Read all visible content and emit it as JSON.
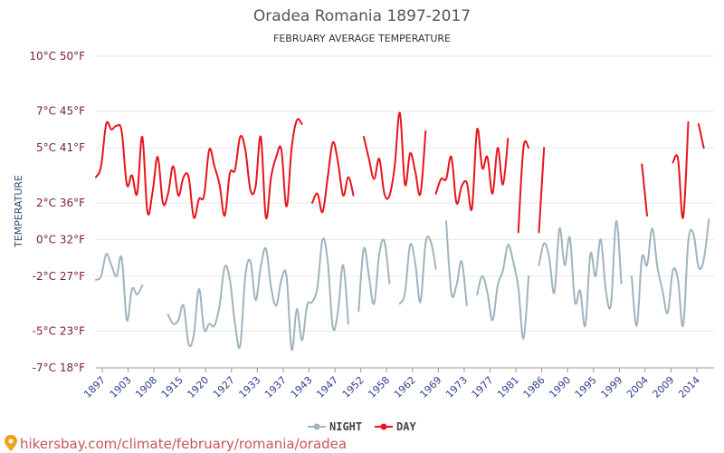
{
  "chart_data": {
    "type": "line",
    "title": "Oradea Romania 1897-2017",
    "subtitle": "FEBRUARY AVERAGE TEMPERATURE",
    "ylabel": "TEMPERATURE",
    "xlabel": "",
    "ylim": [
      -7,
      10
    ],
    "xlim": [
      1897,
      2017
    ],
    "y_ticks": [
      {
        "value": 10,
        "label": "10°C 50°F"
      },
      {
        "value": 7,
        "label": "7°C 45°F"
      },
      {
        "value": 5,
        "label": "5°C 41°F"
      },
      {
        "value": 2,
        "label": "2°C 36°F"
      },
      {
        "value": 0,
        "label": "0°C 32°F"
      },
      {
        "value": -2,
        "label": "-2°C 27°F"
      },
      {
        "value": -5,
        "label": "-5°C 23°F"
      },
      {
        "value": -7,
        "label": "-7°C 18°F"
      }
    ],
    "x_ticks": [
      "1897",
      "1903",
      "1908",
      "1915",
      "1920",
      "1927",
      "1933",
      "1937",
      "1943",
      "1947",
      "1952",
      "1958",
      "1962",
      "1969",
      "1973",
      "1977",
      "1981",
      "1986",
      "1990",
      "1995",
      "1999",
      "2004",
      "2009",
      "2014"
    ],
    "legend_position": "bottom-center",
    "series": [
      {
        "name": "NIGHT",
        "color": "#9fb4bf",
        "segments": [
          [
            [
              1897,
              -2.2
            ],
            [
              1898,
              -2.0
            ],
            [
              1899,
              -0.8
            ],
            [
              1900,
              -1.4
            ],
            [
              1901,
              -2.0
            ],
            [
              1902,
              -1.0
            ],
            [
              1903,
              -4.4
            ],
            [
              1904,
              -2.7
            ],
            [
              1905,
              -3.0
            ],
            [
              1906,
              -2.5
            ]
          ],
          [
            [
              1911,
              -4.1
            ],
            [
              1912,
              -4.6
            ],
            [
              1913,
              -4.4
            ],
            [
              1914,
              -3.6
            ],
            [
              1915,
              -5.7
            ],
            [
              1916,
              -5.2
            ],
            [
              1917,
              -2.7
            ],
            [
              1918,
              -4.9
            ],
            [
              1919,
              -4.6
            ],
            [
              1920,
              -4.7
            ],
            [
              1921,
              -3.6
            ],
            [
              1922,
              -1.5
            ],
            [
              1923,
              -2.2
            ],
            [
              1924,
              -4.6
            ],
            [
              1925,
              -5.8
            ],
            [
              1926,
              -2.0
            ],
            [
              1927,
              -1.2
            ],
            [
              1928,
              -3.3
            ],
            [
              1929,
              -1.5
            ],
            [
              1930,
              -0.5
            ],
            [
              1931,
              -2.6
            ],
            [
              1932,
              -3.6
            ],
            [
              1933,
              -2.2
            ],
            [
              1934,
              -2.0
            ],
            [
              1935,
              -6.0
            ],
            [
              1936,
              -3.8
            ],
            [
              1937,
              -5.5
            ],
            [
              1938,
              -3.6
            ],
            [
              1939,
              -3.4
            ],
            [
              1940,
              -2.6
            ],
            [
              1941,
              0.0
            ],
            [
              1942,
              -1.2
            ],
            [
              1943,
              -4.8
            ],
            [
              1944,
              -3.9
            ],
            [
              1945,
              -1.4
            ],
            [
              1946,
              -4.6
            ]
          ],
          [
            [
              1948,
              -3.9
            ],
            [
              1949,
              -0.5
            ],
            [
              1950,
              -2.0
            ],
            [
              1951,
              -3.5
            ],
            [
              1952,
              -0.8
            ],
            [
              1953,
              -0.1
            ],
            [
              1954,
              -2.4
            ]
          ],
          [
            [
              1956,
              -3.5
            ],
            [
              1957,
              -2.9
            ],
            [
              1958,
              -0.3
            ],
            [
              1959,
              -1.3
            ],
            [
              1960,
              -3.4
            ],
            [
              1961,
              -0.2
            ],
            [
              1962,
              -0.1
            ],
            [
              1963,
              -1.6
            ]
          ],
          [
            [
              1965,
              1.0
            ],
            [
              1966,
              -2.9
            ],
            [
              1967,
              -2.5
            ],
            [
              1968,
              -1.2
            ],
            [
              1969,
              -3.6
            ]
          ],
          [
            [
              1971,
              -3.0
            ],
            [
              1972,
              -2.0
            ],
            [
              1973,
              -2.9
            ],
            [
              1974,
              -4.4
            ],
            [
              1975,
              -2.5
            ],
            [
              1976,
              -1.7
            ],
            [
              1977,
              -0.3
            ],
            [
              1978,
              -1.2
            ],
            [
              1979,
              -2.6
            ],
            [
              1980,
              -5.4
            ],
            [
              1981,
              -2.0
            ]
          ],
          [
            [
              1983,
              -1.4
            ],
            [
              1984,
              -0.2
            ],
            [
              1985,
              -1.0
            ],
            [
              1986,
              -2.9
            ],
            [
              1987,
              0.6
            ],
            [
              1988,
              -1.4
            ],
            [
              1989,
              0.1
            ],
            [
              1990,
              -3.4
            ],
            [
              1991,
              -2.8
            ],
            [
              1992,
              -4.7
            ],
            [
              1993,
              -0.8
            ],
            [
              1994,
              -2.0
            ],
            [
              1995,
              0.0
            ],
            [
              1996,
              -2.8
            ],
            [
              1997,
              -3.5
            ],
            [
              1998,
              1.0
            ],
            [
              1999,
              -2.4
            ]
          ],
          [
            [
              2001,
              -2.0
            ],
            [
              2002,
              -4.7
            ],
            [
              2003,
              -1.0
            ],
            [
              2004,
              -1.4
            ],
            [
              2005,
              0.6
            ],
            [
              2006,
              -1.5
            ],
            [
              2007,
              -2.8
            ],
            [
              2008,
              -4.0
            ],
            [
              2009,
              -1.7
            ],
            [
              2010,
              -2.2
            ],
            [
              2011,
              -4.7
            ],
            [
              2012,
              -0.1
            ],
            [
              2013,
              0.3
            ],
            [
              2014,
              -1.5
            ],
            [
              2015,
              -1.1
            ],
            [
              2016,
              1.1
            ]
          ]
        ]
      },
      {
        "name": "DAY",
        "color": "#e8141c",
        "segments": [
          [
            [
              1897,
              3.4
            ],
            [
              1898,
              4.0
            ],
            [
              1899,
              6.3
            ],
            [
              1900,
              6.0
            ],
            [
              1901,
              6.2
            ],
            [
              1902,
              5.9
            ],
            [
              1903,
              3.0
            ],
            [
              1904,
              3.5
            ],
            [
              1905,
              2.5
            ],
            [
              1906,
              5.6
            ],
            [
              1907,
              1.5
            ],
            [
              1908,
              2.6
            ],
            [
              1909,
              4.5
            ],
            [
              1910,
              2.0
            ],
            [
              1911,
              2.5
            ],
            [
              1912,
              4.0
            ],
            [
              1913,
              2.4
            ],
            [
              1914,
              3.4
            ],
            [
              1915,
              3.4
            ],
            [
              1916,
              1.2
            ],
            [
              1917,
              2.2
            ],
            [
              1918,
              2.4
            ],
            [
              1919,
              4.9
            ],
            [
              1920,
              4.0
            ],
            [
              1921,
              3.0
            ],
            [
              1922,
              1.3
            ],
            [
              1923,
              3.6
            ],
            [
              1924,
              3.8
            ],
            [
              1925,
              5.6
            ],
            [
              1926,
              4.9
            ],
            [
              1927,
              2.7
            ],
            [
              1928,
              2.9
            ],
            [
              1929,
              5.6
            ],
            [
              1930,
              1.2
            ],
            [
              1931,
              3.4
            ],
            [
              1932,
              4.5
            ],
            [
              1933,
              4.9
            ],
            [
              1934,
              1.8
            ],
            [
              1935,
              5.0
            ],
            [
              1936,
              6.5
            ],
            [
              1937,
              6.3
            ]
          ],
          [
            [
              1939,
              2.0
            ],
            [
              1940,
              2.5
            ],
            [
              1941,
              1.5
            ],
            [
              1942,
              3.4
            ],
            [
              1943,
              5.3
            ],
            [
              1944,
              4.2
            ],
            [
              1945,
              2.4
            ],
            [
              1946,
              3.4
            ],
            [
              1947,
              2.4
            ]
          ],
          [
            [
              1949,
              5.6
            ],
            [
              1950,
              4.4
            ],
            [
              1951,
              3.3
            ],
            [
              1952,
              4.4
            ],
            [
              1953,
              2.5
            ],
            [
              1954,
              2.4
            ],
            [
              1955,
              4.0
            ],
            [
              1956,
              6.9
            ],
            [
              1957,
              3.0
            ],
            [
              1958,
              4.7
            ],
            [
              1959,
              3.7
            ],
            [
              1960,
              2.5
            ],
            [
              1961,
              5.9
            ]
          ],
          [
            [
              1963,
              2.5
            ],
            [
              1964,
              3.3
            ],
            [
              1965,
              3.3
            ],
            [
              1966,
              4.5
            ],
            [
              1967,
              2.0
            ],
            [
              1968,
              2.9
            ],
            [
              1969,
              3.1
            ],
            [
              1970,
              1.7
            ],
            [
              1971,
              6.0
            ],
            [
              1972,
              3.9
            ],
            [
              1973,
              4.5
            ],
            [
              1974,
              2.5
            ],
            [
              1975,
              5.0
            ],
            [
              1976,
              3.0
            ],
            [
              1977,
              5.5
            ]
          ],
          [
            [
              1979,
              0.4
            ],
            [
              1980,
              5.0
            ],
            [
              1981,
              5.0
            ]
          ],
          [
            [
              1983,
              0.4
            ],
            [
              1984,
              5.0
            ]
          ],
          [
            [
              2003,
              4.1
            ],
            [
              2004,
              1.3
            ]
          ],
          [
            [
              2009,
              4.2
            ],
            [
              2010,
              4.4
            ],
            [
              2011,
              1.2
            ],
            [
              2012,
              6.4
            ]
          ],
          [
            [
              2014,
              6.3
            ],
            [
              2015,
              5.0
            ]
          ]
        ]
      }
    ]
  },
  "legend": {
    "night_label": "NIGHT",
    "day_label": "DAY"
  },
  "watermark": {
    "text": "hikersbay.com/climate/february/romania/oradea"
  }
}
